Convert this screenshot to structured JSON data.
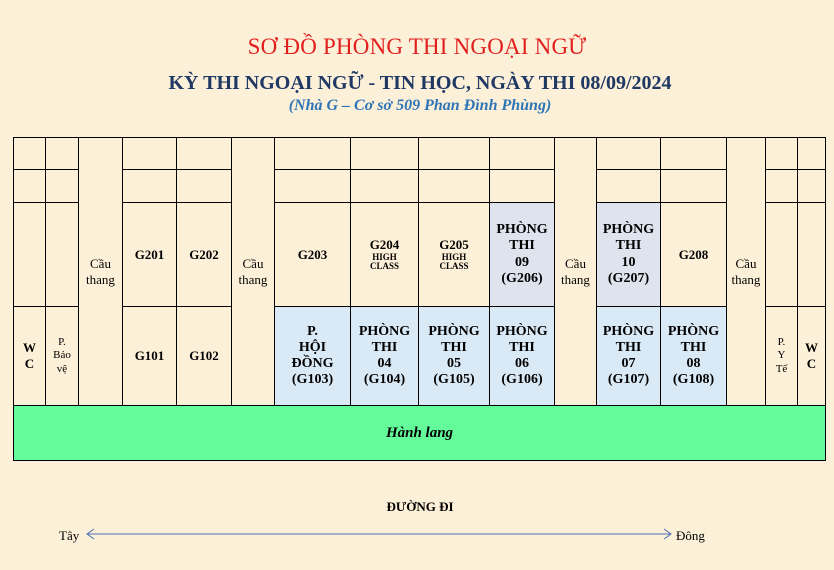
{
  "header": {
    "title": "SƠ ĐỒ PHÒNG THI NGOẠI NGỮ",
    "subtitle": "KỲ THI NGOẠI NGỮ - TIN HỌC, NGÀY THI 08/09/2024",
    "location": "(Nhà G – Cơ sở 509 Phan Đình Phùng)"
  },
  "colors": {
    "background": "#fdf0d8",
    "title_red": "#e0201e",
    "subtitle_navy": "#1f3864",
    "location_blue": "#2e75b6",
    "room_highlight": "#dae9f6",
    "hallway_green": "#64fc9a"
  },
  "floor2": {
    "g201": "G201",
    "g202": "G202",
    "g203": "G203",
    "g204": {
      "code": "G204",
      "tag": "HIGH\nCLASS"
    },
    "g205": {
      "code": "G205",
      "tag": "HIGH\nCLASS"
    },
    "g206": "PHÒNG\nTHI\n09\n(G206)",
    "g207": "PHÒNG\nTHI\n10\n(G207)",
    "g208": "G208"
  },
  "floor1": {
    "wc_left": "W\nC",
    "guard": "P.\nBảo\nvệ",
    "g101": "G101",
    "g102": "G102",
    "g103": "P.\nHỘI\nĐỒNG\n(G103)",
    "g104": "PHÒNG\nTHI\n04\n(G104)",
    "g105": "PHÒNG\nTHI\n05\n(G105)",
    "g106": "PHÒNG\nTHI\n06\n(G106)",
    "g107": "PHÒNG\nTHI\n07\n(G107)",
    "g108": "PHÒNG\nTHI\n08\n(G108)",
    "medical": "P.\nY\nTế",
    "wc_right": "W\nC"
  },
  "stairs": "Cầu\nthang",
  "hallway": "Hành lang",
  "road": {
    "label": "ĐƯỜNG ĐI",
    "west": "Tây",
    "east": "Đông"
  }
}
